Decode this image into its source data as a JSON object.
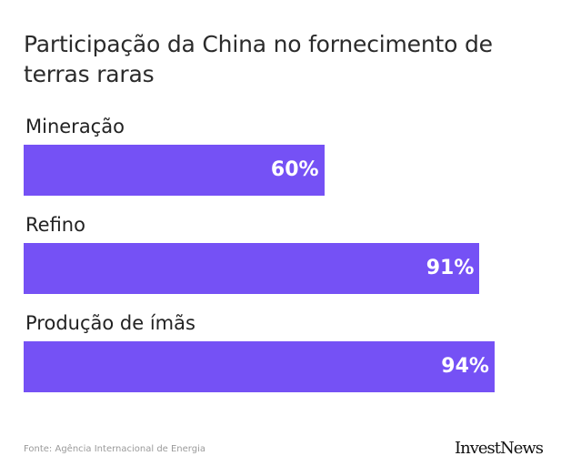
{
  "title": "Participação da China no fornecimento de terras raras",
  "source": "Fonte: Agência Internacional de Energia",
  "logo_text": "InvestNews",
  "colors": {
    "bar": "#7551f5",
    "bar_text": "#ffffff"
  },
  "chart_data": {
    "type": "bar",
    "orientation": "horizontal",
    "title": "Participação da China no fornecimento de terras raras",
    "categories": [
      "Mineração",
      "Refino",
      "Produção de ímãs"
    ],
    "values": [
      60,
      91,
      94
    ],
    "value_labels": [
      "60%",
      "91%",
      "94%"
    ],
    "unit": "%",
    "xlim": [
      0,
      100
    ],
    "grid": false,
    "legend": "none"
  }
}
